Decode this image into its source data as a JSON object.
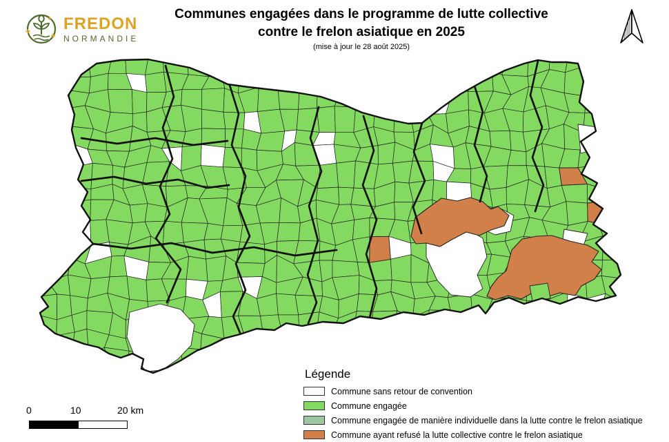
{
  "header": {
    "logo": {
      "brand": "FREDON",
      "region": "NORMANDIE",
      "brand_color": "#DCA325",
      "region_color": "#4C6B2B"
    },
    "title_line1": "Communes engagées dans le programme de lutte collective",
    "title_line2": "contre le frelon asiatique en 2025",
    "subtitle": "(mise à jour le 28 août 2025)"
  },
  "map": {
    "colors": {
      "engaged": "#84DA60",
      "no_return": "#FFFFFF",
      "individual": "#9DC7A0",
      "refused": "#D08048",
      "boundary_thin": "#222222",
      "boundary_thick": "#111111"
    }
  },
  "legend": {
    "title": "Légende",
    "items": [
      {
        "label": "Commune sans retour de convention",
        "color": "#FFFFFF"
      },
      {
        "label": "Commune engagée",
        "color": "#84DA60"
      },
      {
        "label": "Commune engagée de manière individuelle dans la lutte contre le frelon asiatique",
        "color": "#9DC7A0"
      },
      {
        "label": "Commune ayant refusé la lutte collective contre le frelon asiatique",
        "color": "#D08048"
      }
    ]
  },
  "scalebar": {
    "labels": [
      "0",
      "10",
      "20 km"
    ]
  }
}
